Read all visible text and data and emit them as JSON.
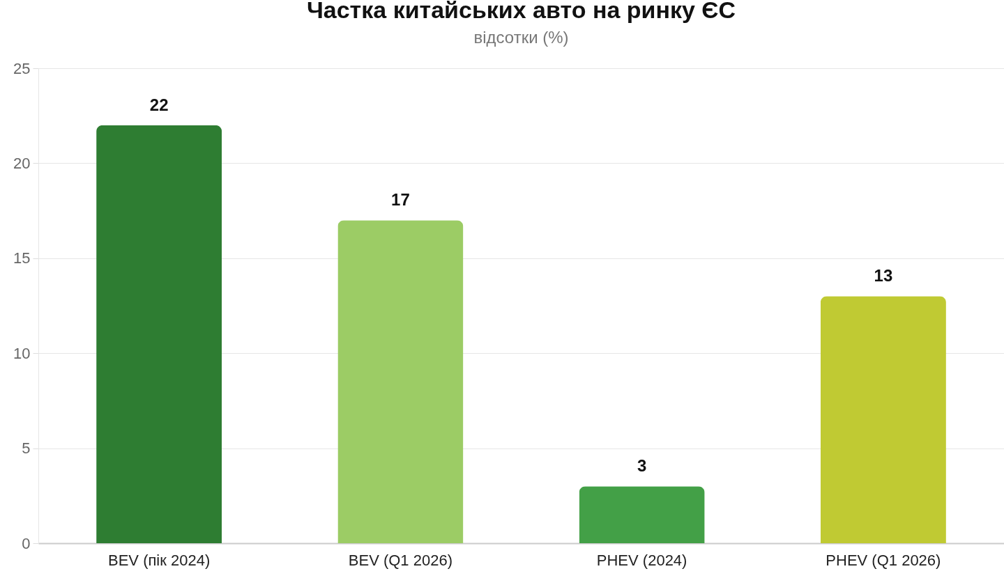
{
  "chart_data": {
    "type": "bar",
    "title": "Частка китайських авто на ринку ЄС",
    "subtitle": "відсотки (%)",
    "categories": [
      "BEV (пік 2024)",
      "BEV (Q1 2026)",
      "PHEV (2024)",
      "PHEV (Q1 2026)"
    ],
    "values": [
      22,
      17,
      3,
      13
    ],
    "colors": [
      "#2e7d32",
      "#9ccc65",
      "#43a047",
      "#c0ca33"
    ],
    "ylim": [
      0,
      25
    ],
    "yticks": [
      0,
      5,
      10,
      15,
      20,
      25
    ],
    "grid": "y",
    "data_labels": true
  }
}
